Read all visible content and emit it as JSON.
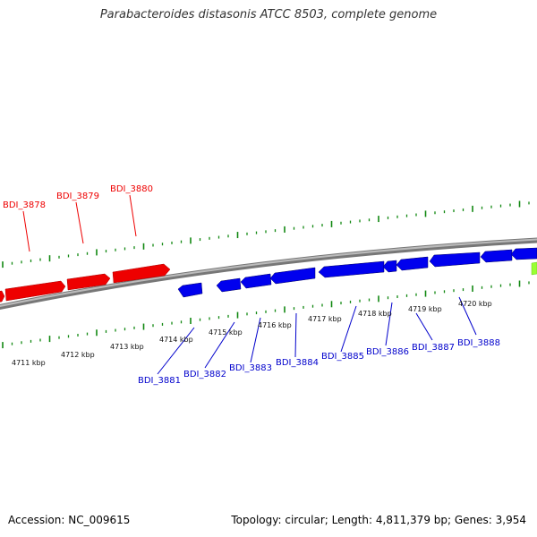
{
  "title": "Parabacteroides distasonis ATCC 8503, complete genome",
  "footer": {
    "accession": "Accession: NC_009615",
    "stats": "Topology: circular; Length: 4,811,379 bp; Genes: 3,954"
  },
  "colors": {
    "forward_gene": "#ff0000",
    "reverse_gene": "#0000ff",
    "other_gene": "#99ff33",
    "tick": "#118811",
    "backbone": "#888888"
  },
  "scale": {
    "labels": [
      "4711 kbp",
      "4712 kbp",
      "4713 kbp",
      "4714 kbp",
      "4715 kbp",
      "4716 kbp",
      "4717 kbp",
      "4718 kbp",
      "4719 kbp",
      "4720 kbp"
    ]
  },
  "genes": {
    "forward": [
      "BDI_3878",
      "BDI_3879",
      "BDI_3880"
    ],
    "reverse": [
      "BDI_3881",
      "BDI_3882",
      "BDI_3883",
      "BDI_3884",
      "BDI_3885",
      "BDI_3886",
      "BDI_3887",
      "BDI_3888"
    ]
  }
}
